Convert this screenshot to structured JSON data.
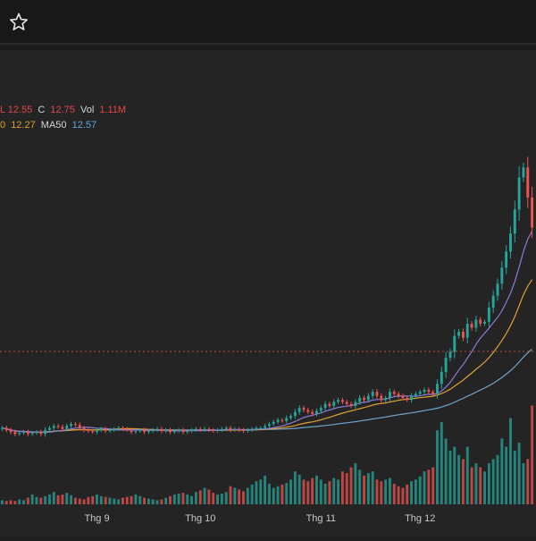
{
  "header": {
    "star_icon": "star-outline-icon"
  },
  "legend": {
    "row1": {
      "low_value": "L 12.55",
      "close_label": "C",
      "close_value": "12.75",
      "vol_label": "Vol",
      "vol_value": "1.11M"
    },
    "row2": {
      "ma20_value_fragment": "0",
      "ma20_value": "12.27",
      "ma50_label": "MA50",
      "ma50_value": "12.57"
    }
  },
  "colors": {
    "up": "#26a69a",
    "down": "#ef5350",
    "ma20": "#e0a030",
    "ma50": "#6fa3c8",
    "ma10": "#8e7ad8"
  },
  "chart_data": {
    "type": "candlestick",
    "x_ticks": [
      "Thg 9",
      "Thg 10",
      "Thg 11",
      "Thg 12"
    ],
    "annotations": [
      {
        "type": "horizontal-dotted-line",
        "color": "#ef5350",
        "description": "reference price level"
      }
    ],
    "series": [
      {
        "name": "MA20",
        "color": "#e0a030"
      },
      {
        "name": "MA50",
        "color": "#6fa3c8"
      }
    ],
    "candles_close": [
      6.0,
      5.9,
      5.8,
      5.7,
      5.75,
      5.8,
      5.7,
      5.75,
      5.8,
      5.7,
      5.9,
      6.0,
      6.1,
      6.05,
      5.95,
      6.1,
      6.2,
      6.15,
      6.0,
      5.9,
      5.85,
      5.8,
      5.9,
      5.95,
      5.85,
      5.9,
      5.95,
      6.0,
      5.95,
      5.9,
      5.8,
      5.85,
      5.9,
      5.8,
      5.85,
      5.9,
      5.95,
      5.85,
      5.9,
      5.8,
      5.85,
      5.9,
      5.8,
      5.85,
      5.9,
      5.95,
      5.9,
      5.95,
      5.9,
      5.85,
      5.9,
      5.95,
      6.0,
      5.9,
      5.95,
      5.9,
      5.85,
      5.9,
      5.95,
      6.0,
      6.0,
      6.1,
      6.2,
      6.3,
      6.4,
      6.35,
      6.5,
      6.6,
      6.8,
      7.0,
      6.9,
      6.8,
      6.7,
      6.85,
      7.0,
      7.2,
      7.1,
      7.3,
      7.4,
      7.3,
      7.2,
      7.1,
      7.3,
      7.5,
      7.4,
      7.6,
      7.8,
      7.6,
      7.4,
      7.5,
      7.8,
      7.7,
      7.6,
      7.5,
      7.4,
      7.6,
      7.7,
      7.8,
      7.9,
      7.8,
      7.7,
      8.2,
      8.8,
      9.5,
      9.8,
      10.6,
      10.8,
      10.5,
      11.2,
      11.0,
      11.4,
      11.2,
      11.3,
      12.0,
      12.6,
      13.2,
      14.0,
      14.8,
      15.7,
      16.9,
      18.5,
      19.0,
      17.5,
      16.0
    ],
    "candles_direction": "up/down derived from close vs previous close",
    "volume": [
      0.05,
      0.04,
      0.05,
      0.04,
      0.06,
      0.05,
      0.08,
      0.12,
      0.09,
      0.08,
      0.1,
      0.12,
      0.15,
      0.11,
      0.12,
      0.14,
      0.11,
      0.08,
      0.07,
      0.06,
      0.09,
      0.1,
      0.12,
      0.1,
      0.09,
      0.08,
      0.07,
      0.06,
      0.08,
      0.09,
      0.1,
      0.12,
      0.1,
      0.08,
      0.07,
      0.06,
      0.05,
      0.06,
      0.08,
      0.1,
      0.12,
      0.13,
      0.14,
      0.12,
      0.1,
      0.15,
      0.17,
      0.2,
      0.18,
      0.14,
      0.12,
      0.13,
      0.15,
      0.22,
      0.2,
      0.18,
      0.16,
      0.2,
      0.24,
      0.28,
      0.3,
      0.35,
      0.25,
      0.2,
      0.22,
      0.24,
      0.26,
      0.3,
      0.4,
      0.36,
      0.3,
      0.28,
      0.32,
      0.35,
      0.3,
      0.25,
      0.28,
      0.32,
      0.3,
      0.4,
      0.38,
      0.45,
      0.5,
      0.42,
      0.35,
      0.38,
      0.4,
      0.3,
      0.28,
      0.3,
      0.32,
      0.25,
      0.22,
      0.2,
      0.24,
      0.28,
      0.3,
      0.34,
      0.4,
      0.42,
      0.45,
      0.9,
      1.0,
      0.8,
      0.65,
      0.7,
      0.6,
      0.55,
      0.7,
      0.45,
      0.5,
      0.45,
      0.4,
      0.5,
      0.55,
      0.6,
      0.8,
      0.7,
      1.05,
      0.65,
      0.75,
      0.5,
      0.55,
      1.2
    ]
  }
}
